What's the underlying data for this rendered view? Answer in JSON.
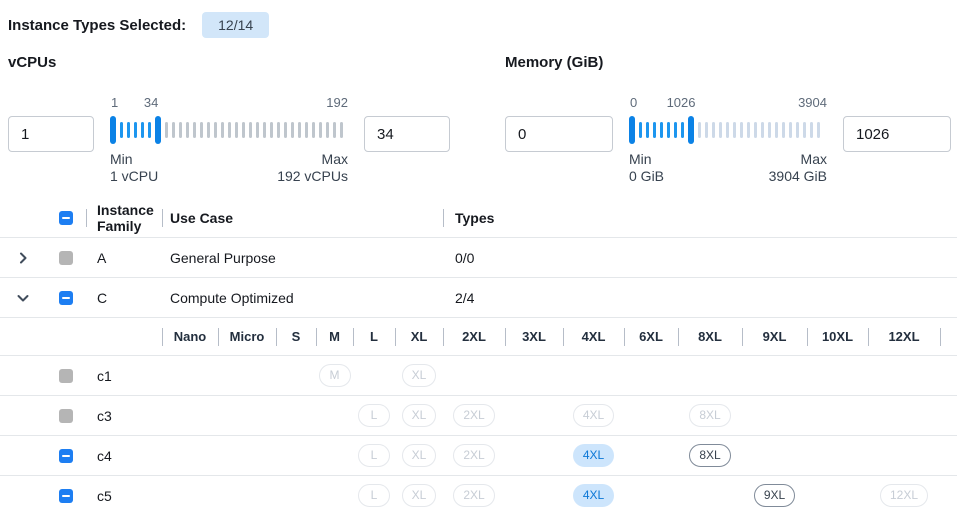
{
  "header": {
    "label": "Instance Types Selected:",
    "badge": "12/14"
  },
  "filters": [
    {
      "label": "vCPUs",
      "low": "1",
      "high": "34",
      "min_value": 1,
      "max_value": 192,
      "low_value": 1,
      "high_value": 34,
      "scale": {
        "min": "1",
        "current": "34",
        "max": "192"
      },
      "min_caption": "Min",
      "min_detail": "1 vCPU",
      "max_caption": "Max",
      "max_detail": "192 vCPUs",
      "tick_inactive_color": "#bfc6cd"
    },
    {
      "label": "Memory (GiB)",
      "low": "0",
      "high": "1026",
      "min_value": 0,
      "max_value": 3904,
      "low_value": 0,
      "high_value": 1026,
      "scale": {
        "min": "0",
        "current": "1026",
        "max": "3904"
      },
      "min_caption": "Min",
      "min_detail": "0 GiB",
      "max_caption": "Max",
      "max_detail": "3904 GiB",
      "tick_inactive_color": "#cdd9e8"
    }
  ],
  "table": {
    "columns": {
      "family": "Instance Family",
      "use_case": "Use Case",
      "types": "Types"
    },
    "groups": [
      {
        "family": "A",
        "use_case": "General Purpose",
        "types": "0/0",
        "expanded": false,
        "checkbox": "disabled"
      },
      {
        "family": "C",
        "use_case": "Compute Optimized",
        "types": "2/4",
        "expanded": true,
        "checkbox": "indeterminate"
      }
    ],
    "sizes": [
      "Nano",
      "Micro",
      "S",
      "M",
      "L",
      "XL",
      "2XL",
      "3XL",
      "4XL",
      "6XL",
      "8XL",
      "9XL",
      "10XL",
      "12XL"
    ],
    "instance_rows": [
      {
        "name": "c1",
        "checkbox": "disabled",
        "badges": [
          {
            "size": "M",
            "state": "disabled"
          },
          {
            "size": "XL",
            "state": "disabled"
          }
        ]
      },
      {
        "name": "c3",
        "checkbox": "disabled",
        "badges": [
          {
            "size": "L",
            "state": "disabled"
          },
          {
            "size": "XL",
            "state": "disabled"
          },
          {
            "size": "2XL",
            "state": "disabled"
          },
          {
            "size": "4XL",
            "state": "disabled"
          },
          {
            "size": "8XL",
            "state": "disabled"
          }
        ]
      },
      {
        "name": "c4",
        "checkbox": "indeterminate",
        "badges": [
          {
            "size": "L",
            "state": "disabled"
          },
          {
            "size": "XL",
            "state": "disabled"
          },
          {
            "size": "2XL",
            "state": "disabled"
          },
          {
            "size": "4XL",
            "state": "selected"
          },
          {
            "size": "8XL",
            "state": "available"
          }
        ]
      },
      {
        "name": "c5",
        "checkbox": "indeterminate",
        "badges": [
          {
            "size": "L",
            "state": "disabled"
          },
          {
            "size": "XL",
            "state": "disabled"
          },
          {
            "size": "2XL",
            "state": "disabled"
          },
          {
            "size": "4XL",
            "state": "selected"
          },
          {
            "size": "9XL",
            "state": "available"
          },
          {
            "size": "12XL",
            "state": "disabled"
          }
        ]
      }
    ]
  },
  "colors": {
    "accent_blue": "#1d7ef2",
    "slider_handle": "#0b82e6",
    "slider_tick_active": "#1d96ef",
    "count_badge_bg": "#d2e6f9",
    "badge_selected_bg": "#cde5fc",
    "badge_selected_text": "#0b77d6",
    "badge_available_border": "#808b99",
    "badge_disabled_border": "#e5e8ec",
    "checkbox_disabled": "#b5b5b5"
  }
}
